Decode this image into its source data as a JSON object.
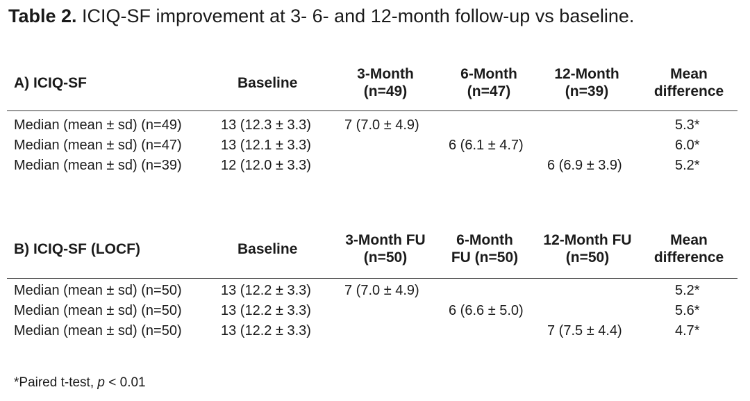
{
  "caption": {
    "bold": "Table 2.",
    "text": " ICIQ-SF improvement at 3-  6- and 12-month follow-up vs baseline."
  },
  "section_a": {
    "title": "A)   ICIQ-SF",
    "baseline": "Baseline",
    "m3": [
      "3-Month",
      "(n=49)"
    ],
    "m6": [
      "6-Month",
      "(n=47)"
    ],
    "m12": [
      "12-Month",
      "(n=39)"
    ],
    "diff": [
      "Mean",
      "difference"
    ],
    "rows": [
      {
        "label": "Median (mean ± sd) (n=49)",
        "baseline": "13 (12.3 ± 3.3)",
        "m3": "7 (7.0 ± 4.9)",
        "m6": "",
        "m12": "",
        "diff": "5.3*"
      },
      {
        "label": "Median (mean ± sd) (n=47)",
        "baseline": "13 (12.1 ± 3.3)",
        "m3": "",
        "m6": "6 (6.1 ± 4.7)",
        "m12": "",
        "diff": "6.0*"
      },
      {
        "label": "Median (mean ± sd) (n=39)",
        "baseline": "12 (12.0 ± 3.3)",
        "m3": "",
        "m6": "",
        "m12": "6 (6.9 ± 3.9)",
        "diff": "5.2*"
      }
    ]
  },
  "section_b": {
    "title": "B)   ICIQ-SF (LOCF)",
    "baseline": "Baseline",
    "m3": [
      "3-Month FU",
      "(n=50)"
    ],
    "m6": [
      "6-Month",
      "FU (n=50)"
    ],
    "m12": [
      "12-Month FU",
      "(n=50)"
    ],
    "diff": [
      "Mean",
      "difference"
    ],
    "rows": [
      {
        "label": "Median (mean ± sd) (n=50)",
        "baseline": "13 (12.2 ± 3.3)",
        "m3": "7 (7.0 ± 4.9)",
        "m6": "",
        "m12": "",
        "diff": "5.2*"
      },
      {
        "label": "Median (mean ± sd) (n=50)",
        "baseline": "13 (12.2 ± 3.3)",
        "m3": "",
        "m6": "6 (6.6 ± 5.0)",
        "m12": "",
        "diff": "5.6*"
      },
      {
        "label": "Median (mean ± sd) (n=50)",
        "baseline": "13 (12.2 ± 3.3)",
        "m3": "",
        "m6": "",
        "m12": "7 (7.5 ± 4.4)",
        "diff": "4.7*"
      }
    ]
  },
  "footnote": {
    "prefix": "*Paired t-test, ",
    "italic": "p",
    "suffix": " < 0.01"
  }
}
